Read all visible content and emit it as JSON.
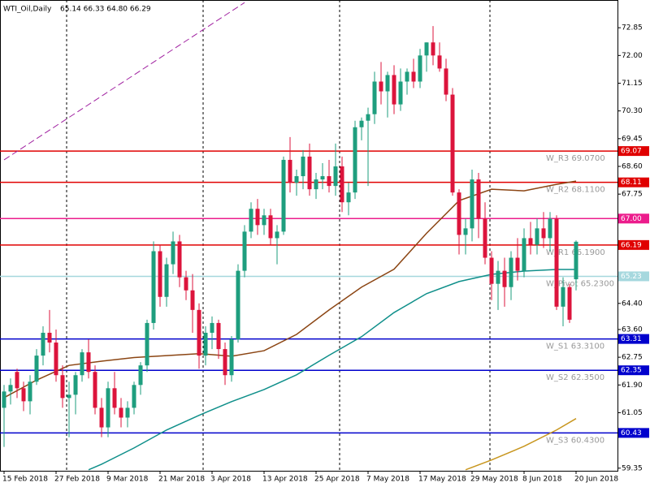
{
  "chart_data": {
    "type": "candlestick",
    "title": "WTI_Oil,Daily",
    "subtitle": "65.14 66.33 64.80 66.29",
    "categories": [
      "15 Feb 2018",
      null,
      null,
      null,
      null,
      null,
      null,
      null,
      "27 Feb 2018",
      null,
      null,
      null,
      null,
      null,
      null,
      null,
      "9 Mar 2018",
      null,
      null,
      null,
      null,
      null,
      null,
      null,
      "21 Mar 2018",
      null,
      null,
      null,
      null,
      null,
      null,
      null,
      "3 Apr 2018",
      null,
      null,
      null,
      null,
      null,
      null,
      null,
      "13 Apr 2018",
      null,
      null,
      null,
      null,
      null,
      null,
      null,
      "25 Apr 2018",
      null,
      null,
      null,
      null,
      null,
      null,
      null,
      "7 May 2018",
      null,
      null,
      null,
      null,
      null,
      null,
      null,
      "17 May 2018",
      null,
      null,
      null,
      null,
      null,
      null,
      null,
      "29 May 2018",
      null,
      null,
      null,
      null,
      null,
      null,
      null,
      "8 Jun 2018",
      null,
      null,
      null,
      null,
      null,
      null,
      null,
      "20 Jun 2018"
    ],
    "open": [
      61.2,
      61.7,
      62.3,
      61.8,
      61.4,
      62.0,
      62.8,
      63.5,
      63.2,
      62.2,
      61.5,
      61.6,
      62.2,
      62.9,
      62.3,
      61.2,
      60.6,
      61.8,
      61.2,
      60.9,
      61.2,
      61.9,
      62.5,
      63.8,
      66.0,
      64.6,
      65.6,
      66.3,
      65.2,
      64.8,
      64.2,
      62.8,
      63.5,
      63.8,
      63.0,
      62.2,
      63.3,
      65.4,
      66.6,
      67.3,
      66.8,
      67.1,
      66.4,
      66.6,
      68.8,
      68.1,
      68.3,
      68.9,
      67.9,
      68.2,
      68.3,
      68.0,
      68.6,
      67.5,
      67.8,
      69.8,
      70.0,
      70.2,
      71.2,
      70.9,
      71.4,
      70.5,
      71.2,
      71.5,
      71.2,
      72.0,
      72.4,
      72.0,
      71.6,
      70.8,
      67.8,
      66.5,
      66.7,
      68.2,
      67.0,
      65.8,
      65.0,
      65.4,
      64.9,
      65.8,
      65.4,
      66.4,
      66.2,
      66.7,
      66.4,
      67.0,
      64.3,
      64.9,
      65.14
    ],
    "high": [
      61.9,
      62.1,
      62.4,
      62.0,
      62.2,
      63.0,
      63.7,
      64.2,
      63.6,
      62.5,
      62.0,
      62.3,
      63.0,
      63.3,
      62.5,
      61.5,
      62.0,
      62.3,
      61.5,
      61.4,
      62.0,
      62.6,
      63.9,
      66.3,
      66.2,
      65.8,
      66.6,
      66.5,
      65.4,
      65.3,
      64.4,
      63.7,
      64.0,
      63.9,
      63.2,
      63.4,
      65.6,
      66.8,
      67.5,
      67.6,
      67.3,
      67.3,
      66.8,
      68.9,
      69.5,
      68.5,
      69.1,
      69.3,
      68.4,
      68.7,
      68.8,
      69.3,
      68.9,
      68.1,
      70.0,
      70.1,
      70.4,
      71.5,
      71.8,
      71.5,
      71.7,
      71.6,
      71.6,
      71.9,
      72.2,
      72.4,
      72.9,
      72.4,
      71.9,
      71.0,
      67.9,
      67.0,
      68.5,
      68.4,
      67.5,
      66.0,
      65.7,
      65.8,
      66.0,
      66.4,
      66.7,
      66.9,
      67.0,
      67.2,
      67.2,
      67.1,
      65.2,
      65.0,
      66.33
    ],
    "low": [
      60.0,
      61.3,
      61.5,
      61.1,
      61.0,
      61.9,
      62.5,
      62.9,
      62.0,
      61.2,
      60.3,
      61.0,
      62.0,
      62.1,
      61.0,
      60.3,
      60.3,
      61.0,
      60.6,
      60.6,
      61.0,
      61.6,
      62.3,
      63.6,
      64.3,
      64.3,
      65.3,
      64.9,
      64.5,
      63.5,
      62.4,
      62.5,
      63.0,
      62.7,
      61.9,
      62.0,
      63.2,
      65.2,
      66.4,
      66.5,
      66.5,
      66.2,
      65.6,
      66.5,
      67.8,
      67.7,
      67.9,
      67.7,
      67.6,
      67.9,
      67.8,
      67.7,
      67.2,
      67.1,
      67.6,
      69.4,
      68.0,
      69.9,
      70.5,
      70.1,
      70.2,
      70.3,
      70.8,
      71.0,
      71.0,
      71.5,
      71.7,
      71.5,
      70.6,
      67.7,
      65.9,
      65.9,
      66.3,
      66.4,
      65.6,
      64.5,
      64.2,
      64.3,
      64.5,
      65.1,
      65.2,
      65.9,
      65.9,
      66.1,
      66.0,
      64.2,
      63.7,
      63.8,
      64.8
    ],
    "close": [
      61.7,
      61.9,
      61.8,
      61.4,
      62.0,
      62.8,
      63.5,
      63.2,
      62.2,
      61.5,
      61.6,
      62.2,
      62.9,
      62.3,
      61.2,
      60.6,
      61.8,
      61.2,
      60.9,
      61.2,
      61.9,
      62.5,
      63.8,
      66.0,
      64.6,
      65.6,
      66.3,
      65.2,
      64.8,
      64.2,
      62.8,
      63.5,
      63.8,
      63.0,
      62.2,
      63.3,
      65.4,
      66.6,
      67.3,
      66.8,
      67.1,
      66.4,
      66.6,
      68.8,
      68.1,
      68.3,
      68.9,
      67.9,
      68.2,
      68.3,
      68.0,
      68.6,
      67.5,
      67.8,
      69.8,
      70.0,
      70.2,
      71.2,
      70.9,
      71.4,
      70.5,
      71.2,
      71.5,
      71.2,
      72.0,
      72.4,
      72.0,
      71.6,
      70.8,
      67.8,
      66.5,
      66.7,
      68.2,
      67.0,
      65.8,
      65.0,
      65.4,
      64.9,
      65.8,
      65.4,
      66.4,
      66.2,
      66.7,
      66.4,
      67.0,
      64.3,
      64.9,
      63.9,
      66.29
    ],
    "up_color": "#1e9e7e",
    "down_color": "#dc143c",
    "lines": [
      {
        "color": "#8b4513",
        "x": [
          0,
          5,
          10,
          15,
          20,
          25,
          30,
          35,
          40,
          45,
          50,
          55,
          60,
          65,
          70,
          75,
          80,
          85,
          88
        ],
        "values": [
          61.51,
          62.05,
          62.5,
          62.63,
          62.74,
          62.8,
          62.86,
          62.78,
          62.95,
          63.45,
          64.2,
          64.9,
          65.45,
          66.55,
          67.55,
          67.9,
          67.85,
          68.05,
          68.15
        ]
      },
      {
        "color": "#0f8f8a",
        "x": [
          13,
          15,
          20,
          25,
          30,
          35,
          40,
          45,
          50,
          55,
          60,
          65,
          70,
          75,
          80,
          85,
          88
        ],
        "values": [
          59.3,
          59.47,
          59.97,
          60.52,
          60.97,
          61.39,
          61.76,
          62.21,
          62.81,
          63.38,
          64.12,
          64.7,
          65.07,
          65.29,
          65.39,
          65.44,
          65.44
        ]
      },
      {
        "color": "#c8961e",
        "x": [
          71,
          75,
          80,
          85,
          88
        ],
        "values": [
          59.3,
          59.6,
          60.02,
          60.52,
          60.87
        ]
      },
      {
        "color": "#a020a0",
        "dash": true,
        "x": [
          0,
          37
        ],
        "values": [
          68.8,
          73.62
        ]
      }
    ],
    "levels": [
      {
        "value": 69.07,
        "tag": "69.07",
        "label": "W_R3 69.0700",
        "color": "#e00000"
      },
      {
        "value": 68.11,
        "tag": "68.11",
        "label": "W_R2 68.1100",
        "color": "#e00000"
      },
      {
        "value": 67.0,
        "tag": "67.00",
        "color": "#ec1c8c"
      },
      {
        "value": 66.19,
        "tag": "66.19",
        "label": "W_R1 66.1900",
        "color": "#e00000"
      },
      {
        "value": 65.23,
        "tag": "65.23",
        "label": "W_Pivot 65.2300",
        "color": "#a6d8de"
      },
      {
        "value": 63.31,
        "tag": "63.31",
        "label": "W_S1 63.3100",
        "color": "#0000cd"
      },
      {
        "value": 62.35,
        "tag": "62.35",
        "label": "W_S2 62.3500",
        "color": "#0000cd"
      },
      {
        "value": 60.43,
        "tag": "60.43",
        "label": "W_S3 60.4300",
        "color": "#0000cd"
      }
    ],
    "ylim": [
      59.27,
      73.7
    ],
    "yticks": [
      72.85,
      {
        "value": 72.0,
        "label": "72.00"
      },
      {
        "value": 71.15,
        "label": "71.15"
      },
      {
        "value": 70.3,
        "label": "70.30"
      },
      69.45,
      {
        "value": 68.6,
        "label": "68.60"
      },
      67.75,
      {
        "value": 64.4,
        "label": "64.40"
      },
      {
        "value": 63.6,
        "label": "63.60"
      },
      62.75,
      {
        "value": 61.9,
        "label": "61.90"
      },
      61.05,
      59.35
    ]
  }
}
